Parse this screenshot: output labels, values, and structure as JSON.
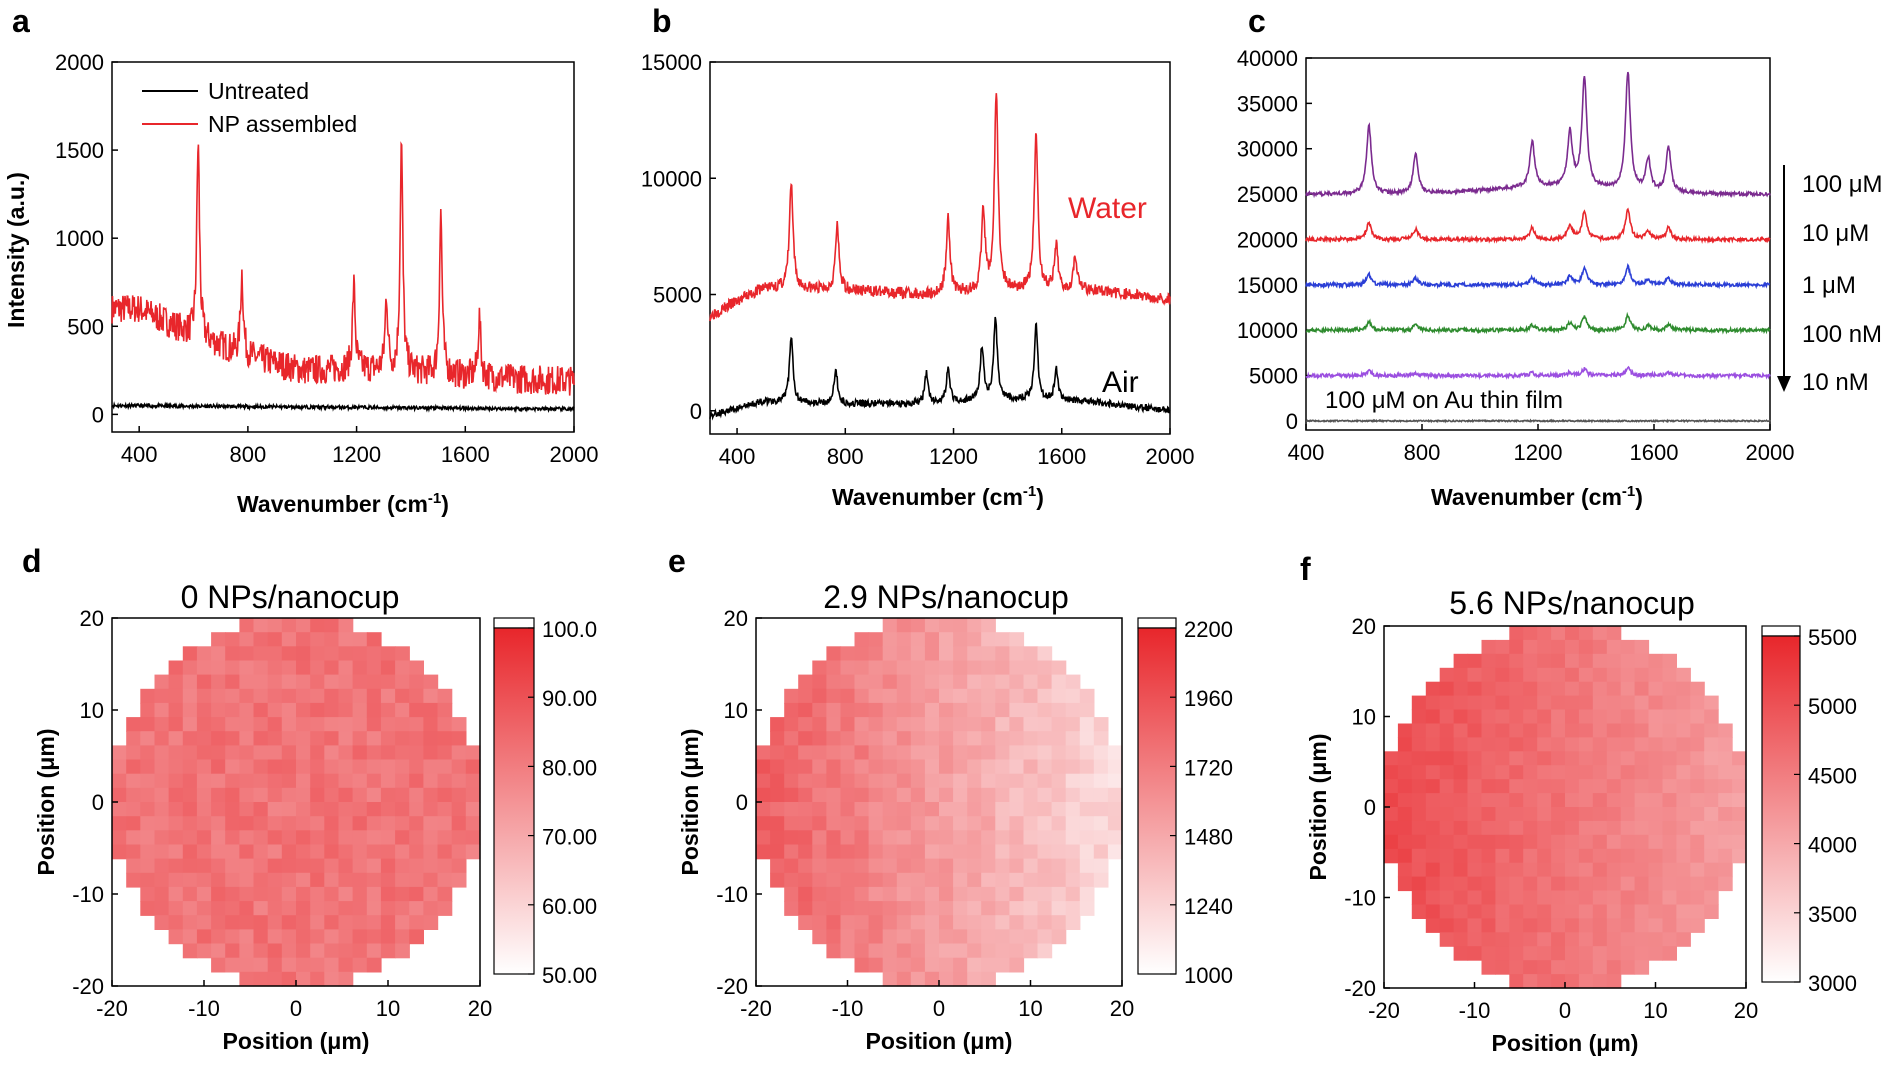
{
  "panels": {
    "a": {
      "letter": "a",
      "xlabel": "Wavenumber (cm",
      "xlabel_sup": "-1",
      "xlabel_end": ")",
      "ylabel": "Intensity (a.u.)",
      "xticks": [
        "400",
        "800",
        "1200",
        "1600",
        "2000"
      ],
      "yticks": [
        "0",
        "500",
        "1000",
        "1500",
        "2000"
      ],
      "legend": [
        "Untreated",
        "NP assembled"
      ]
    },
    "b": {
      "letter": "b",
      "xlabel": "Wavenumber (cm",
      "xlabel_sup": "-1",
      "xlabel_end": ")",
      "xticks": [
        "400",
        "800",
        "1200",
        "1600",
        "2000"
      ],
      "yticks": [
        "0",
        "5000",
        "10000",
        "15000"
      ],
      "labels": [
        "Water",
        "Air"
      ]
    },
    "c": {
      "letter": "c",
      "xlabel": "Wavenumber (cm",
      "xlabel_sup": "-1",
      "xlabel_end": ")",
      "xticks": [
        "400",
        "800",
        "1200",
        "1600",
        "2000"
      ],
      "yticks": [
        "0",
        "5000",
        "10000",
        "15000",
        "20000",
        "25000",
        "30000",
        "35000",
        "40000"
      ],
      "conc_labels": [
        "100 μM",
        "10 μM",
        "1 μM",
        "100 nM",
        "10 nM"
      ],
      "bottom_label": "100 μM on Au thin film"
    },
    "d": {
      "letter": "d",
      "title": "0 NPs/nanocup",
      "colorbar_ticks": [
        "100.0",
        "90.00",
        "80.00",
        "70.00",
        "60.00",
        "50.00"
      ]
    },
    "e": {
      "letter": "e",
      "title": "2.9 NPs/nanocup",
      "colorbar_ticks": [
        "2200",
        "1960",
        "1720",
        "1480",
        "1240",
        "1000"
      ]
    },
    "f": {
      "letter": "f",
      "title": "5.6 NPs/nanocup",
      "colorbar_ticks": [
        "5500",
        "5000",
        "4500",
        "4000",
        "3500",
        "3000"
      ]
    },
    "heatmap_axes": {
      "xlabel": "Position (μm)",
      "ylabel": "Position (μm)",
      "ticks": [
        "-20",
        "-10",
        "0",
        "10",
        "20"
      ]
    }
  },
  "colors": {
    "red": "#e8262b",
    "black": "#000000",
    "purple": "#7b2b8f",
    "blue": "#2b3fd6",
    "green": "#2e8b2e",
    "violet": "#9b4fe0",
    "gray": "#555555"
  },
  "chart_data": [
    {
      "panel": "a",
      "type": "line",
      "xlabel": "Wavenumber (cm-1)",
      "ylabel": "Intensity (a.u.)",
      "xlim": [
        300,
        2000
      ],
      "ylim": [
        -100,
        2000
      ],
      "series": [
        {
          "name": "Untreated",
          "baseline": [
            [
              300,
              50
            ],
            [
              2000,
              30
            ]
          ],
          "peaks": []
        },
        {
          "name": "NP assembled",
          "baseline": [
            [
              300,
              600
            ],
            [
              400,
              600
            ],
            [
              600,
              450
            ],
            [
              800,
              330
            ],
            [
              1000,
              250
            ],
            [
              1200,
              260
            ],
            [
              1400,
              240
            ],
            [
              1600,
              220
            ],
            [
              1800,
              200
            ],
            [
              2000,
              190
            ]
          ],
          "peaks": [
            [
              617,
              1100
            ],
            [
              778,
              460
            ],
            [
              1190,
              470
            ],
            [
              1310,
              420
            ],
            [
              1365,
              1300
            ],
            [
              1510,
              910
            ],
            [
              1652,
              330
            ]
          ]
        }
      ]
    },
    {
      "panel": "b",
      "type": "line",
      "xlabel": "Wavenumber (cm-1)",
      "xlim": [
        300,
        2000
      ],
      "ylim": [
        -1000,
        15000
      ],
      "series": [
        {
          "name": "Water",
          "baseline": [
            [
              300,
              4100
            ],
            [
              500,
              5300
            ],
            [
              800,
              5200
            ],
            [
              1100,
              5000
            ],
            [
              1400,
              5200
            ],
            [
              1700,
              5200
            ],
            [
              2000,
              4800
            ]
          ],
          "peaks": [
            [
              600,
              4500
            ],
            [
              770,
              2700
            ],
            [
              1180,
              3300
            ],
            [
              1310,
              3400
            ],
            [
              1358,
              8500
            ],
            [
              1505,
              6800
            ],
            [
              1580,
              1800
            ],
            [
              1650,
              1500
            ]
          ]
        },
        {
          "name": "Air",
          "baseline": [
            [
              300,
              -200
            ],
            [
              500,
              400
            ],
            [
              800,
              300
            ],
            [
              1100,
              300
            ],
            [
              1400,
              500
            ],
            [
              1700,
              400
            ],
            [
              2000,
              0
            ]
          ],
          "peaks": [
            [
              600,
              2800
            ],
            [
              765,
              1400
            ],
            [
              1100,
              1300
            ],
            [
              1180,
              1400
            ],
            [
              1305,
              2300
            ],
            [
              1355,
              3500
            ],
            [
              1505,
              3200
            ],
            [
              1580,
              1300
            ]
          ]
        }
      ]
    },
    {
      "panel": "c",
      "type": "line",
      "xlabel": "Wavenumber (cm-1)",
      "xlim": [
        400,
        2000
      ],
      "ylim": [
        -1000,
        40000
      ],
      "series": [
        {
          "name": "100 μM",
          "offset": 25000,
          "peak_scale": 1.0
        },
        {
          "name": "10 μM",
          "offset": 20000,
          "peak_scale": 0.25
        },
        {
          "name": "1 μM",
          "offset": 15000,
          "peak_scale": 0.15
        },
        {
          "name": "100 nM",
          "offset": 10000,
          "peak_scale": 0.12
        },
        {
          "name": "10 nM",
          "offset": 5000,
          "peak_scale": 0.06
        },
        {
          "name": "100 μM on Au thin film",
          "offset": 0,
          "peak_scale": 0.0
        }
      ],
      "peaks": [
        [
          617,
          7500
        ],
        [
          778,
          4500
        ],
        [
          1180,
          5000
        ],
        [
          1310,
          6000
        ],
        [
          1360,
          12000
        ],
        [
          1510,
          13000
        ],
        [
          1580,
          3500
        ],
        [
          1650,
          5000
        ]
      ]
    },
    {
      "panel": "d",
      "type": "heatmap",
      "title": "0 NPs/nanocup",
      "xlim": [
        -20,
        20
      ],
      "ylim": [
        -20,
        20
      ],
      "color_range": [
        50,
        100
      ],
      "pattern": "uniform",
      "mean": 82
    },
    {
      "panel": "e",
      "type": "heatmap",
      "title": "2.9 NPs/nanocup",
      "xlim": [
        -20,
        20
      ],
      "ylim": [
        -20,
        20
      ],
      "color_range": [
        1000,
        2200
      ],
      "pattern": "gradient-left-high",
      "left": 1900,
      "right": 1200
    },
    {
      "panel": "f",
      "type": "heatmap",
      "title": "5.6 NPs/nanocup",
      "xlim": [
        -20,
        20
      ],
      "ylim": [
        -20,
        20
      ],
      "color_range": [
        3000,
        5500
      ],
      "pattern": "gradient-left-high",
      "left": 5100,
      "right": 4100
    }
  ]
}
